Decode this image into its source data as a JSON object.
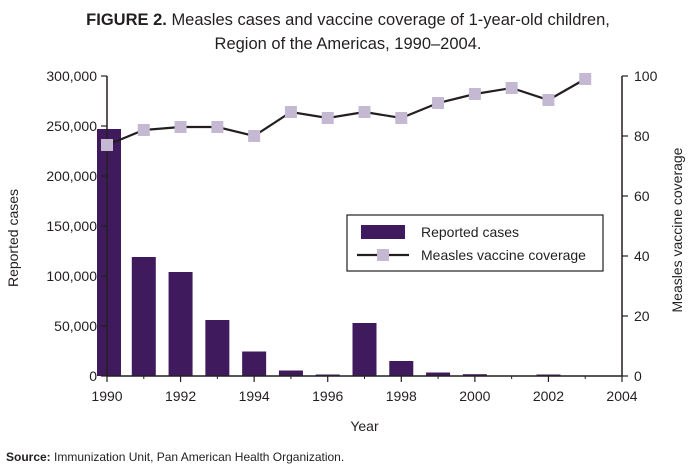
{
  "title": {
    "figure_label": "FIGURE 2.",
    "line1": "Measles cases and vaccine coverage of 1-year-old children,",
    "line2": "Region of the Americas, 1990–2004."
  },
  "source": {
    "label": "Source:",
    "text": "Immunization Unit, Pan American Health Organization."
  },
  "colors": {
    "bar": "#3f1a5c",
    "line": "#231f20",
    "marker": "#c4b8d2",
    "axis": "#231f20"
  },
  "chart_data": {
    "type": "bar",
    "combo": "bar + line (secondary y axis)",
    "xlabel": "Year",
    "ylabel": "Reported cases",
    "y2label": "Measles vaccine coverage",
    "xlim": [
      1990,
      2004
    ],
    "ylim": [
      0,
      300000
    ],
    "y2lim": [
      0,
      100
    ],
    "x_ticks": [
      "1990",
      "1992",
      "1994",
      "1996",
      "1998",
      "2000",
      "2002",
      "2004"
    ],
    "y_ticks": [
      "0",
      "50,000",
      "100,000",
      "150,000",
      "200,000",
      "250,000",
      "300,000"
    ],
    "y2_ticks": [
      "0",
      "20",
      "40",
      "60",
      "80",
      "100"
    ],
    "legend_position": "center-right",
    "series": [
      {
        "name": "Reported cases",
        "kind": "bar",
        "axis": "left",
        "x": [
          1990,
          1991,
          1992,
          1993,
          1994,
          1995,
          1996,
          1997,
          1998,
          1999,
          2000,
          2001,
          2002,
          2003
        ],
        "values": [
          247000,
          119000,
          104000,
          56000,
          24500,
          5500,
          1500,
          53000,
          15000,
          3500,
          1800,
          500,
          1500,
          100
        ]
      },
      {
        "name": "Measles vaccine coverage",
        "kind": "line",
        "axis": "right",
        "x": [
          1990,
          1991,
          1992,
          1993,
          1994,
          1995,
          1996,
          1997,
          1998,
          1999,
          2000,
          2001,
          2002,
          2003
        ],
        "values": [
          77,
          82,
          83,
          83,
          80,
          88,
          86,
          88,
          86,
          91,
          94,
          96,
          92,
          99
        ]
      }
    ]
  }
}
